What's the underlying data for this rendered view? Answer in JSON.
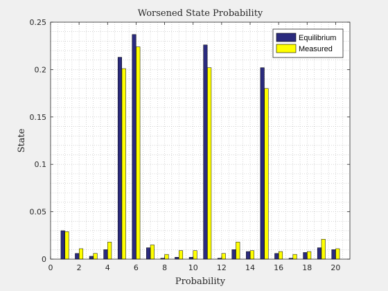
{
  "chart_data": {
    "type": "bar",
    "title": "Worsened State Probability",
    "xlabel": "Probability",
    "ylabel": "State",
    "xlim": [
      0,
      21
    ],
    "ylim": [
      0,
      0.25
    ],
    "grid": "minor-dotted",
    "legend_position": "top-right",
    "x_ticks": [
      0,
      2,
      4,
      6,
      8,
      10,
      12,
      14,
      16,
      18,
      20
    ],
    "y_ticks": [
      0,
      0.05,
      0.1,
      0.15,
      0.2,
      0.25
    ],
    "x_tick_labels": [
      "0",
      "2",
      "4",
      "6",
      "8",
      "10",
      "12",
      "14",
      "16",
      "18",
      "20"
    ],
    "y_tick_labels": [
      "0",
      "0.05",
      "0.1",
      "0.15",
      "0.2",
      "0.25"
    ],
    "categories": [
      1,
      2,
      3,
      4,
      5,
      6,
      7,
      8,
      9,
      10,
      11,
      12,
      13,
      14,
      15,
      16,
      17,
      18,
      19,
      20
    ],
    "series": [
      {
        "name": "Equilibrium",
        "color": "#2b2b7e",
        "values": [
          0.03,
          0.006,
          0.003,
          0.01,
          0.213,
          0.237,
          0.012,
          0.001,
          0.002,
          0.002,
          0.226,
          0.001,
          0.01,
          0.008,
          0.202,
          0.006,
          0.001,
          0.007,
          0.012,
          0.01
        ]
      },
      {
        "name": "Measured",
        "color": "#ffff00",
        "values": [
          0.029,
          0.011,
          0.006,
          0.018,
          0.201,
          0.224,
          0.015,
          0.005,
          0.009,
          0.009,
          0.202,
          0.006,
          0.018,
          0.009,
          0.18,
          0.008,
          0.005,
          0.008,
          0.021,
          0.011
        ]
      }
    ]
  }
}
